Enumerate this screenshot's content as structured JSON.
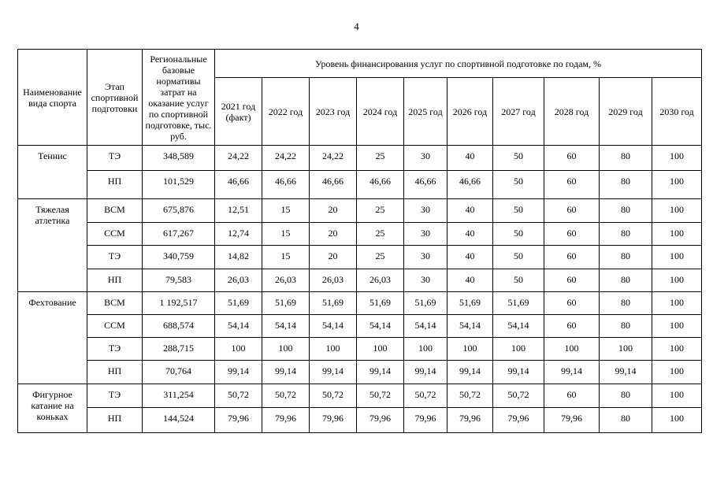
{
  "page_number": "4",
  "table": {
    "header": {
      "sport": "Наименование вида спорта",
      "stage": "Этап спортивной подготовки",
      "norm": "Региональные базовые нормативы затрат на оказание услуг по спортивной подготовке, тыс. руб.",
      "funding": "Уровень финансирования услуг по спортивной подготовке по годам, %",
      "years": [
        "2021 год (факт)",
        "2022 год",
        "2023 год",
        "2024 год",
        "2025 год",
        "2026 год",
        "2027 год",
        "2028 год",
        "2029 год",
        "2030 год"
      ]
    },
    "groups": [
      {
        "sport": "Теннис",
        "rows": [
          {
            "stage": "ТЭ",
            "norm": "348,589",
            "values": [
              "24,22",
              "24,22",
              "24,22",
              "25",
              "30",
              "40",
              "50",
              "60",
              "80",
              "100"
            ]
          },
          {
            "stage": "НП",
            "norm": "101,529",
            "values": [
              "46,66",
              "46,66",
              "46,66",
              "46,66",
              "46,66",
              "46,66",
              "50",
              "60",
              "80",
              "100"
            ]
          }
        ]
      },
      {
        "sport": "Тяжелая атлетика",
        "rows": [
          {
            "stage": "ВСМ",
            "norm": "675,876",
            "values": [
              "12,51",
              "15",
              "20",
              "25",
              "30",
              "40",
              "50",
              "60",
              "80",
              "100"
            ]
          },
          {
            "stage": "ССМ",
            "norm": "617,267",
            "values": [
              "12,74",
              "15",
              "20",
              "25",
              "30",
              "40",
              "50",
              "60",
              "80",
              "100"
            ]
          },
          {
            "stage": "ТЭ",
            "norm": "340,759",
            "values": [
              "14,82",
              "15",
              "20",
              "25",
              "30",
              "40",
              "50",
              "60",
              "80",
              "100"
            ]
          },
          {
            "stage": "НП",
            "norm": "79,583",
            "values": [
              "26,03",
              "26,03",
              "26,03",
              "26,03",
              "30",
              "40",
              "50",
              "60",
              "80",
              "100"
            ]
          }
        ]
      },
      {
        "sport": "Фехтование",
        "rows": [
          {
            "stage": "ВСМ",
            "norm": "1 192,517",
            "values": [
              "51,69",
              "51,69",
              "51,69",
              "51,69",
              "51,69",
              "51,69",
              "51,69",
              "60",
              "80",
              "100"
            ]
          },
          {
            "stage": "ССМ",
            "norm": "688,574",
            "values": [
              "54,14",
              "54,14",
              "54,14",
              "54,14",
              "54,14",
              "54,14",
              "54,14",
              "60",
              "80",
              "100"
            ]
          },
          {
            "stage": "ТЭ",
            "norm": "288,715",
            "values": [
              "100",
              "100",
              "100",
              "100",
              "100",
              "100",
              "100",
              "100",
              "100",
              "100"
            ]
          },
          {
            "stage": "НП",
            "norm": "70,764",
            "values": [
              "99,14",
              "99,14",
              "99,14",
              "99,14",
              "99,14",
              "99,14",
              "99,14",
              "99,14",
              "99,14",
              "100"
            ]
          }
        ]
      },
      {
        "sport": "Фигурное катание на коньках",
        "rows": [
          {
            "stage": "ТЭ",
            "norm": "311,254",
            "values": [
              "50,72",
              "50,72",
              "50,72",
              "50,72",
              "50,72",
              "50,72",
              "50,72",
              "60",
              "80",
              "100"
            ]
          },
          {
            "stage": "НП",
            "norm": "144,524",
            "values": [
              "79,96",
              "79,96",
              "79,96",
              "79,96",
              "79,96",
              "79,96",
              "79,96",
              "79,96",
              "80",
              "100"
            ]
          }
        ]
      }
    ]
  }
}
